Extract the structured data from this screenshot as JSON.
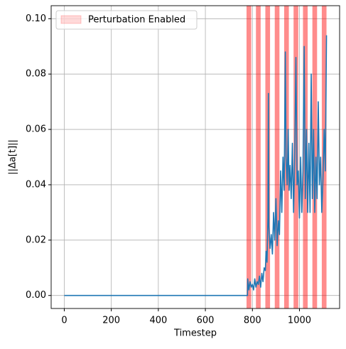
{
  "chart_data": {
    "type": "line",
    "xlabel": "Timestep",
    "ylabel": "||Δa[t]||",
    "x": [
      0,
      779,
      780,
      785,
      790,
      795,
      800,
      805,
      810,
      815,
      820,
      825,
      830,
      835,
      840,
      845,
      850,
      855,
      858,
      862,
      866,
      868,
      870,
      875,
      880,
      885,
      890,
      895,
      900,
      905,
      910,
      915,
      920,
      925,
      930,
      935,
      940,
      943,
      948,
      952,
      956,
      960,
      965,
      970,
      975,
      980,
      985,
      990,
      995,
      1000,
      1005,
      1010,
      1015,
      1020,
      1025,
      1030,
      1035,
      1040,
      1045,
      1050,
      1055,
      1060,
      1065,
      1070,
      1075,
      1080,
      1085,
      1090,
      1095,
      1100,
      1105,
      1110,
      1115
    ],
    "series": [
      {
        "color": "#1f77b4",
        "values": [
          0,
          0,
          0.006,
          0.002,
          0.005,
          0.003,
          0.004,
          0.002,
          0.006,
          0.003,
          0.005,
          0.004,
          0.007,
          0.003,
          0.008,
          0.005,
          0.01,
          0.009,
          0.016,
          0.012,
          0.028,
          0.073,
          0.025,
          0.017,
          0.022,
          0.015,
          0.03,
          0.02,
          0.035,
          0.018,
          0.027,
          0.022,
          0.045,
          0.03,
          0.05,
          0.038,
          0.088,
          0.05,
          0.04,
          0.06,
          0.038,
          0.047,
          0.035,
          0.055,
          0.03,
          0.05,
          0.086,
          0.04,
          0.045,
          0.028,
          0.05,
          0.03,
          0.045,
          0.09,
          0.035,
          0.06,
          0.03,
          0.055,
          0.03,
          0.08,
          0.035,
          0.06,
          0.03,
          0.05,
          0.035,
          0.07,
          0.04,
          0.05,
          0.03,
          0.042,
          0.06,
          0.045,
          0.094
        ]
      }
    ],
    "spans": [
      [
        775,
        795
      ],
      [
        815,
        835
      ],
      [
        855,
        875
      ],
      [
        895,
        915
      ],
      [
        935,
        955
      ],
      [
        975,
        995
      ],
      [
        1015,
        1035
      ],
      [
        1055,
        1075
      ],
      [
        1095,
        1115
      ]
    ],
    "span_label": "Perturbation Enabled",
    "span_color": "#ff0000",
    "xlim": [
      -55.75,
      1170.75
    ],
    "ylim": [
      -0.0047,
      0.1047
    ],
    "xticks": [
      0,
      200,
      400,
      600,
      800,
      1000
    ],
    "yticks": [
      {
        "value": 0,
        "label": "0.00"
      },
      {
        "value": 0.02,
        "label": "0.02"
      },
      {
        "value": 0.04,
        "label": "0.04"
      },
      {
        "value": 0.06,
        "label": "0.06"
      },
      {
        "value": 0.08,
        "label": "0.08"
      },
      {
        "value": 0.1,
        "label": "0.10"
      }
    ],
    "grid": true,
    "legend": "upper left"
  }
}
